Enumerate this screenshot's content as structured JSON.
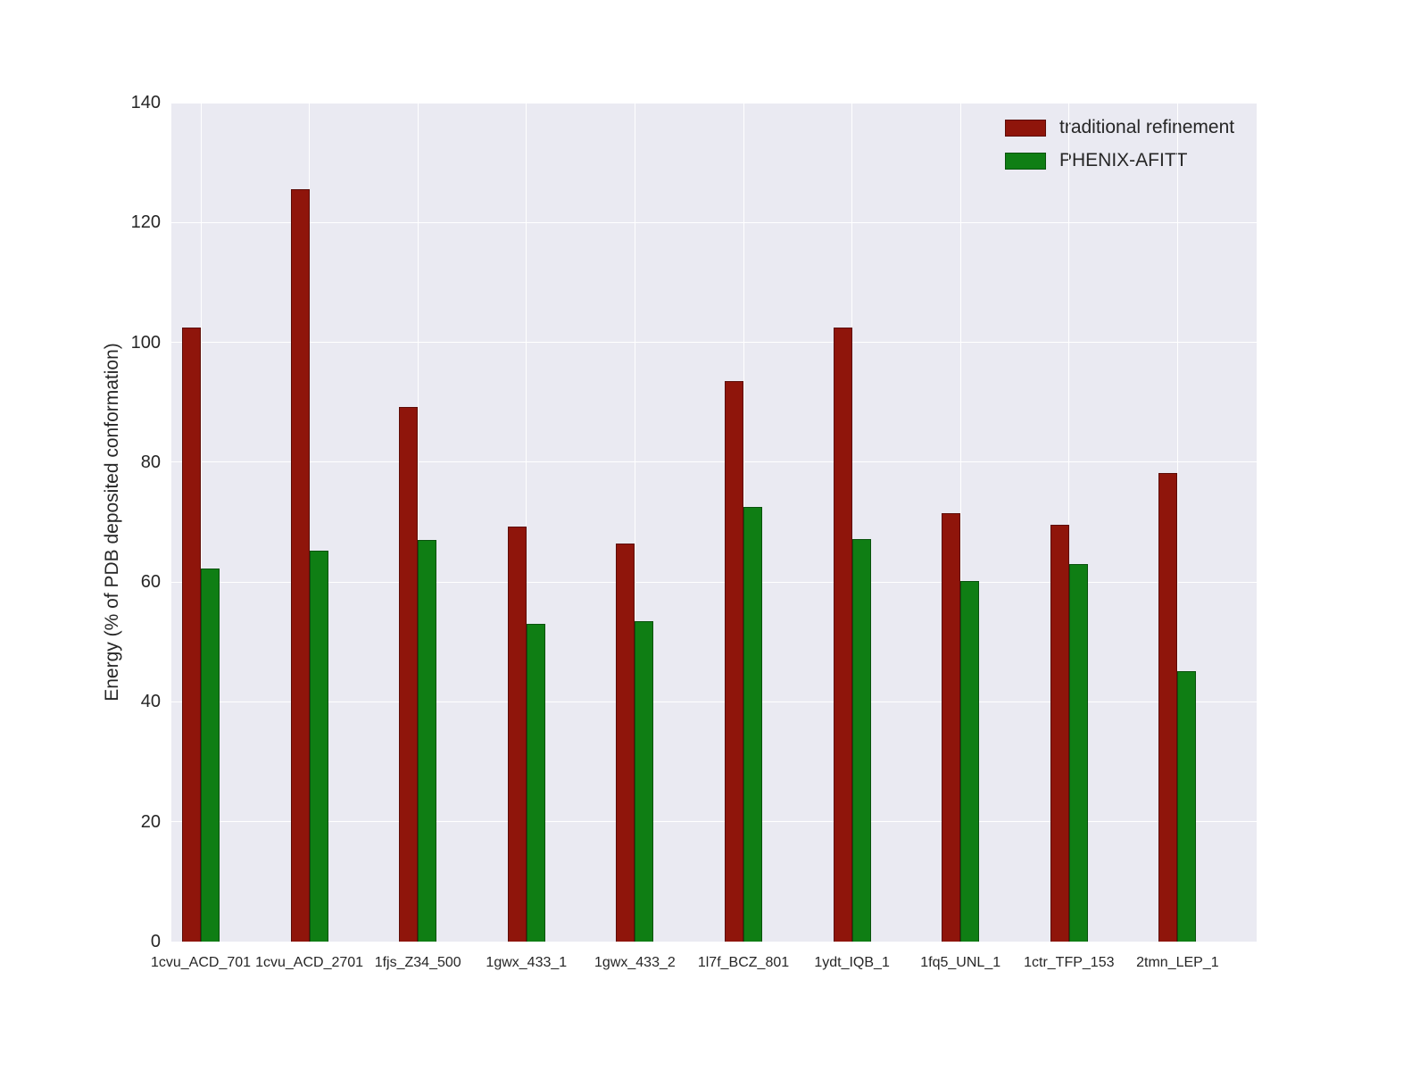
{
  "figure": {
    "background": "#ffffff",
    "plot_background": "#eaeaf2",
    "grid_color": "#ffffff",
    "text_color": "#262626"
  },
  "chart_data": {
    "type": "bar",
    "title": "",
    "xlabel": "",
    "ylabel": "Energy (% of PDB deposited conformation)",
    "ylim": [
      0,
      140
    ],
    "yticks": [
      0,
      20,
      40,
      60,
      80,
      100,
      120,
      140
    ],
    "grid": true,
    "legend_position": "upper right",
    "categories": [
      "1cvu_ACD_701",
      "1cvu_ACD_2701",
      "1fjs_Z34_500",
      "1gwx_433_1",
      "1gwx_433_2",
      "1l7f_BCZ_801",
      "1ydt_IQB_1",
      "1fq5_UNL_1",
      "1ctr_TFP_153",
      "2tmn_LEP_1"
    ],
    "series": [
      {
        "name": "traditional refinement",
        "color": "#8f150b",
        "values": [
          102.5,
          125.5,
          89.2,
          69.2,
          66.5,
          93.5,
          102.5,
          71.5,
          69.5,
          78.2
        ]
      },
      {
        "name": "PHENIX-AFITT",
        "color": "#0f7e14",
        "values": [
          62.2,
          65.2,
          67.0,
          53.0,
          53.5,
          72.5,
          67.2,
          60.2,
          63.0,
          45.2
        ]
      }
    ]
  }
}
